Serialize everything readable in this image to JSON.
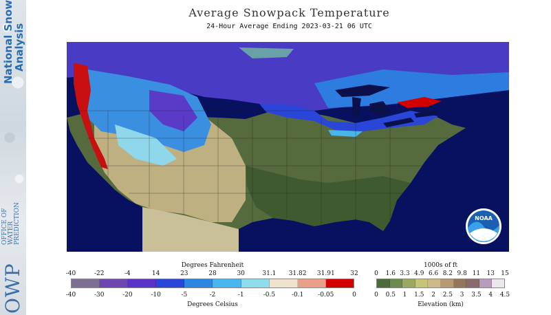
{
  "banner": {
    "line1": "National Snow",
    "line2": "Analysis",
    "org_small": [
      "OFFICE OF",
      "WATER",
      "PREDICTION"
    ],
    "org_big": "OWP"
  },
  "header": {
    "title": "Average Snowpack Temperature",
    "subtitle": "24-Hour Average Ending 2023-03-21 06 UTC"
  },
  "logo": {
    "text": "NOAA"
  },
  "temperature_legend": {
    "top_title": "Degrees Fahrenheit",
    "bottom_title": "Degrees Celsius",
    "fahrenheit": [
      "-40",
      "-22",
      "-4",
      "14",
      "23",
      "28",
      "30",
      "31.1",
      "31.82",
      "31.91",
      "32"
    ],
    "celsius": [
      "-40",
      "-30",
      "-20",
      "-10",
      "-5",
      "-2",
      "-1",
      "-0.5",
      "-0.1",
      "-0.05",
      "0"
    ],
    "colors": [
      "#7d6f94",
      "#6f45b0",
      "#5a32c8",
      "#2a46d8",
      "#2f86e0",
      "#46b6ec",
      "#8fdcec",
      "#efe3cf",
      "#e8a08a",
      "#d40000"
    ]
  },
  "elevation_legend": {
    "top_title": "1000s of ft",
    "bottom_title": "Elevation (km)",
    "feet": [
      "0",
      "1.6",
      "3.3",
      "4.9",
      "6.6",
      "8.2",
      "9.8",
      "11",
      "13",
      "15"
    ],
    "km": [
      "0",
      "0.5",
      "1",
      "1.5",
      "2",
      "2.5",
      "3",
      "3.5",
      "4",
      "4.5"
    ],
    "colors": [
      "#4d6a3c",
      "#6f8a4e",
      "#9aa863",
      "#c6c37a",
      "#cdb889",
      "#b79a72",
      "#95765b",
      "#8a6a6a",
      "#b89cbc",
      "#ece6ef"
    ]
  }
}
